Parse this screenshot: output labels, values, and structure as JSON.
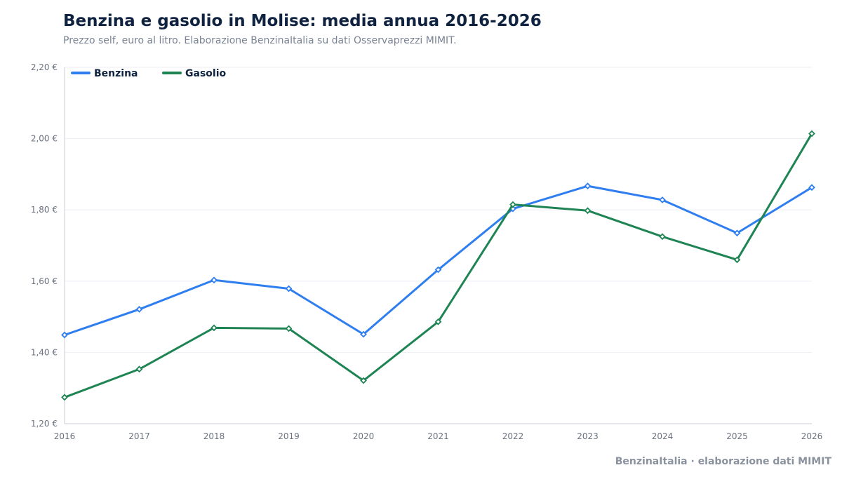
{
  "header": {
    "title": "Benzina e gasolio in Molise: media annua 2016-2026",
    "subtitle": "Prezzo self, euro al litro. Elaborazione BenzinaItalia su dati Osservaprezzi MIMIT."
  },
  "footer": {
    "credit": "BenzinaItalia · elaborazione dati MIMIT"
  },
  "chart_data": {
    "type": "line",
    "x": [
      2016,
      2017,
      2018,
      2019,
      2020,
      2021,
      2022,
      2023,
      2024,
      2025,
      2026
    ],
    "x_tick_labels": [
      "2016",
      "2017",
      "2018",
      "2019",
      "2020",
      "2021",
      "2022",
      "2023",
      "2024",
      "2025",
      "2026"
    ],
    "ylim": [
      1.2,
      2.2
    ],
    "y_ticks": [
      1.2,
      1.4,
      1.6,
      1.8,
      2.0,
      2.2
    ],
    "y_tick_labels": [
      "1,20 €",
      "1,40 €",
      "1,60 €",
      "1,80 €",
      "2,00 €",
      "2,20 €"
    ],
    "grid": true,
    "legend_position": "top-left",
    "series": [
      {
        "name": "Benzina",
        "color": "#2f7ef0",
        "values": [
          1.449,
          1.521,
          1.603,
          1.579,
          1.451,
          1.632,
          1.803,
          1.867,
          1.828,
          1.735,
          1.863
        ]
      },
      {
        "name": "Gasolio",
        "color": "#1f8453",
        "values": [
          1.274,
          1.353,
          1.469,
          1.467,
          1.321,
          1.486,
          1.815,
          1.798,
          1.725,
          1.66,
          2.014
        ]
      }
    ]
  }
}
